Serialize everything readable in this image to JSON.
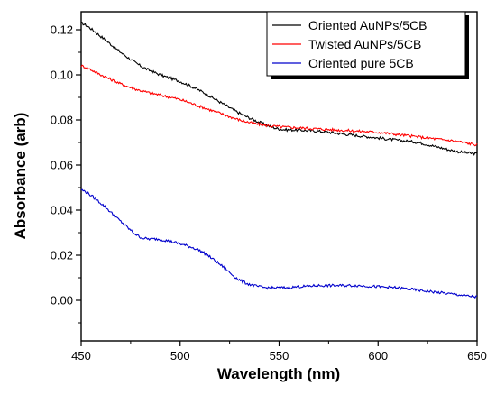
{
  "chart_data": {
    "type": "line",
    "xlabel": "Wavelength (nm)",
    "ylabel": "Absorbance (arb)",
    "xlim": [
      450,
      650
    ],
    "ylim": [
      -0.018,
      0.128
    ],
    "x_ticks": [
      450,
      500,
      550,
      600,
      650
    ],
    "x_tick_labels": [
      "450",
      "500",
      "550",
      "600",
      "650"
    ],
    "y_ticks": [
      0.0,
      0.02,
      0.04,
      0.06,
      0.08,
      0.1,
      0.12
    ],
    "y_tick_labels": [
      "0.00",
      "0.02",
      "0.04",
      "0.06",
      "0.08",
      "0.10",
      "0.12"
    ],
    "grid": false,
    "legend_position": "top-right",
    "series": [
      {
        "name": "Oriented AuNPs/5CB",
        "color": "#000000",
        "x": [
          450,
          460,
          470,
          480,
          490,
          500,
          510,
          520,
          530,
          540,
          550,
          560,
          570,
          580,
          590,
          600,
          610,
          620,
          630,
          640,
          650
        ],
        "y": [
          0.123,
          0.117,
          0.11,
          0.104,
          0.1,
          0.097,
          0.093,
          0.088,
          0.083,
          0.079,
          0.076,
          0.0755,
          0.075,
          0.074,
          0.073,
          0.072,
          0.071,
          0.07,
          0.068,
          0.066,
          0.065
        ]
      },
      {
        "name": "Twisted AuNPs/5CB",
        "color": "#ff0000",
        "x": [
          450,
          460,
          470,
          480,
          490,
          500,
          510,
          520,
          530,
          540,
          550,
          560,
          570,
          580,
          590,
          600,
          610,
          620,
          630,
          640,
          650
        ],
        "y": [
          0.104,
          0.1,
          0.096,
          0.093,
          0.091,
          0.089,
          0.086,
          0.083,
          0.08,
          0.078,
          0.077,
          0.0765,
          0.076,
          0.0755,
          0.075,
          0.0745,
          0.0735,
          0.0725,
          0.0715,
          0.0705,
          0.069
        ]
      },
      {
        "name": "Oriented pure 5CB",
        "color": "#0000cc",
        "x": [
          450,
          460,
          470,
          480,
          490,
          500,
          510,
          520,
          530,
          540,
          550,
          560,
          570,
          580,
          590,
          600,
          610,
          620,
          630,
          640,
          650
        ],
        "y": [
          0.049,
          0.043,
          0.035,
          0.028,
          0.027,
          0.025,
          0.022,
          0.016,
          0.009,
          0.006,
          0.0055,
          0.006,
          0.0065,
          0.0065,
          0.0065,
          0.006,
          0.0055,
          0.0045,
          0.0035,
          0.0025,
          0.0015
        ]
      }
    ]
  }
}
